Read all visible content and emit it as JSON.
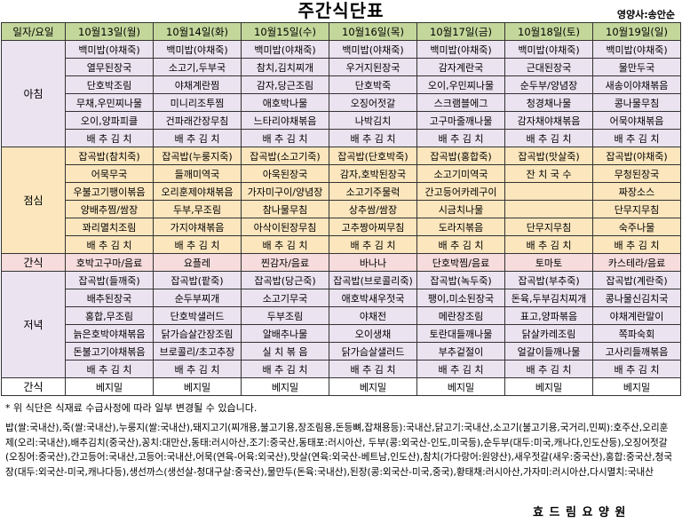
{
  "title": "주간식단표",
  "dietitian": "영양사:송안순",
  "table": {
    "header": [
      "일자/요일",
      "10월13일(월)",
      "10월14일(화)",
      "10월15일(수)",
      "10월16일(목)",
      "10월17일(금)",
      "10월18일(토)",
      "10월19일(일)"
    ],
    "sections": [
      {
        "label": "아침",
        "rows": [
          [
            "백미밥(야채죽)",
            "백미밥(야채죽)",
            "백미밥(야채죽)",
            "백미밥(야채죽)",
            "백미밥(야채죽)",
            "백미밥(야채죽)",
            "백미밥(야채죽)"
          ],
          [
            "열무된장국",
            "소고기,두부국",
            "참치,김치찌개",
            "우거지된장국",
            "감자계란국",
            "근대된장국",
            "물만두국"
          ],
          [
            "단호박조림",
            "야채계란찜",
            "감자,당근조림",
            "단호박죽",
            "오이,우민찌나물",
            "순두부/양념장",
            "새송이야채볶음"
          ],
          [
            "무채,우민찌나물",
            "미니리조투찜",
            "애호박나물",
            "오징어젓갈",
            "스크램블에그",
            "청경채나물",
            "콩나물무침"
          ],
          [
            "오이,양파피클",
            "건파래간장무침",
            "느타리야채볶음",
            "나박김치",
            "고구마줄깨나물",
            "감자채야채볶음",
            "어묵야채볶음"
          ],
          [
            "배 추 김 치",
            "배 추 김 치",
            "배 추 김 치",
            "배 추 김 치",
            "배 추 김 치",
            "배 추 김 치",
            "배 추 김 치"
          ]
        ]
      },
      {
        "label": "점심",
        "rows": [
          [
            "잡곡밥(참치죽)",
            "잡곡밥(누룽지죽)",
            "잡곡밥(소고기죽)",
            "잡곡밥(단호박죽)",
            "잡곡밥(홍합죽)",
            "잡곡밥(맛살죽)",
            "잡곡밥(야채죽)"
          ],
          [
            "어묵무국",
            "들깨미역국",
            "아욱된장국",
            "감자,호박된장국",
            "소고기미역국",
            "잔 치 국 수",
            "무청된장국"
          ],
          [
            "우불고기팽이볶음",
            "오리훈제야채볶음",
            "가자미구이/양념장",
            "소고기주물럭",
            "간고등어카레구이",
            null,
            "짜장소스"
          ],
          [
            "양배추찜/쌈장",
            "두부,무조림",
            "참나물무침",
            "상추쌈/쌈장",
            "시금치나물",
            null,
            "단무지무침"
          ],
          [
            "꽈리멸치조림",
            "가지야채볶음",
            "아삭이된장무침",
            "고추짱아찌무침",
            "도라지볶음",
            "단무지무침",
            "숙주나물"
          ],
          [
            "배 추 김 치",
            "배 추 김 치",
            "배 추 김 치",
            "배 추 김 치",
            "배 추 김 치",
            "배 추 김 치",
            "배 추 김 치"
          ]
        ]
      },
      {
        "label": "간식",
        "rows": [
          [
            "호박고구마/음료",
            "요플레",
            "찐감자/음료",
            "바나나",
            "단호박찜/음료",
            "토마토",
            "카스테라/음료"
          ]
        ]
      },
      {
        "label": "저녁",
        "rows": [
          [
            "잡곡밥(들깨죽)",
            "잡곡밥(팥죽)",
            "잡곡밥(당근죽)",
            "잡곡밥(브로콜리죽)",
            "잡곡밥(녹두죽)",
            "잡곡밥(부추죽)",
            "잡곡밥(계란죽)"
          ],
          [
            "배추된장국",
            "순두부찌개",
            "소고기무국",
            "애호박새우젓국",
            "팽이,미소된장국",
            "돈육,두부김치찌개",
            "콩나물신김치국"
          ],
          [
            "홍합,무조림",
            "단호박샐러드",
            "두부조림",
            "야채전",
            "메란장조림",
            "표고,양파볶음",
            "야채계란말이"
          ],
          [
            "늙은호박야채볶음",
            "닭가슴살간장조림",
            "알배추나물",
            "오이생채",
            "토란대들깨나물",
            "닭살카레조림",
            "쪽파숙회"
          ],
          [
            "돈불고기야채볶음",
            "브로콜리/초고추장",
            "실 치 볶 음",
            "닭가슴살샐러드",
            "부추겉절이",
            "얼갈이들깨나물",
            "고사리들깨볶음"
          ],
          [
            "배 추 김 치",
            "배 추 김 치",
            "배 추 김 치",
            "배 추 김 치",
            "배 추 김 치",
            "배 추 김 치",
            "배 추 김 치"
          ]
        ]
      },
      {
        "label": "간식",
        "rows": [
          [
            "베지밀",
            "베지밀",
            "베지밀",
            "베지밀",
            "베지밀",
            "베지밀",
            "베지밀"
          ]
        ]
      }
    ]
  },
  "note": "* 위 식단은 식재료 수급사정에 따라 일부 변경될 수 있습니다.",
  "origin": "밥(쌀:국내산),죽(쌀:국내산),누룽지(쌀:국내산),돼지고기(찌개용,불고기용,장조림용,돈등뼈,잡채용등):국내산,닭고기:국내산,소고기(불고기용,국거리,민찌):호주산,오리훈제(오리:국내산),배추김치(중국산),꽁치:대만산,동태:러시아산,조기:중국산,동태포:러시아산, 두부(콩:외국산-인도,미국등),순두부(대두:미국,캐나다,인도산등),오징어젓갈(오징어:중국산),간고등어:국내산,고등어:국내산,어묵(연육-어육:외국산),맛살(연육:외국산-베트남,인도산),참치(가다랑어:원양산),새우젓갈(새우:중국산),홍합:중국산,청국장(대두:외국산-미국,캐나다등),생선까스(생선살-청대구살:중국산),물만두(돈육:국내산),된장(콩:외국산-미국,중국),황태채:러시아산,가자미:러시아산,다시멸치:국내산",
  "footer": "효 드 림 요 양 원"
}
